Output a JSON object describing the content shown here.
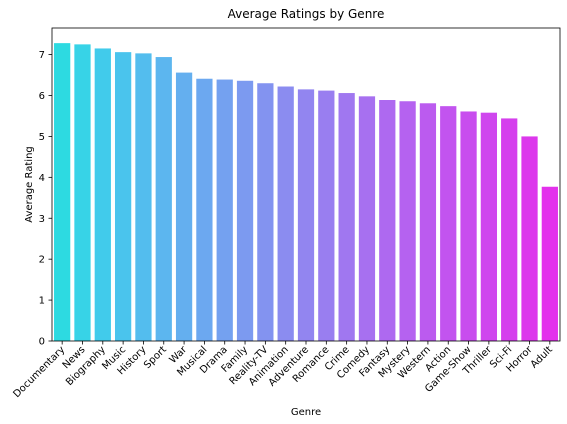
{
  "chart_data": {
    "type": "bar",
    "title": "Average Ratings by Genre",
    "xlabel": "Genre",
    "ylabel": "Average Rating",
    "categories": [
      "Documentary",
      "News",
      "Biography",
      "Music",
      "History",
      "Sport",
      "War",
      "Musical",
      "Drama",
      "Family",
      "Reality-TV",
      "Animation",
      "Adventure",
      "Romance",
      "Crime",
      "Comedy",
      "Fantasy",
      "Mystery",
      "Western",
      "Action",
      "Game-Show",
      "Thriller",
      "Sci-Fi",
      "Horror",
      "Adult"
    ],
    "values": [
      7.28,
      7.25,
      7.15,
      7.06,
      7.03,
      6.94,
      6.56,
      6.41,
      6.39,
      6.36,
      6.3,
      6.22,
      6.15,
      6.12,
      6.06,
      5.98,
      5.89,
      5.86,
      5.81,
      5.74,
      5.61,
      5.58,
      5.44,
      5.0,
      3.77
    ],
    "ylim": [
      0,
      7.65
    ],
    "yticks": [
      0,
      1,
      2,
      3,
      4,
      5,
      6,
      7
    ],
    "grid": false,
    "colors": [
      "#2ddae1",
      "#37d3e7",
      "#41cbeb",
      "#4ac4ed",
      "#53bdee",
      "#5cb6ef",
      "#64afef",
      "#6ca8f0",
      "#74a1f0",
      "#7c9af0",
      "#8393f0",
      "#8b8cf0",
      "#9285f0",
      "#997ef0",
      "#a077f0",
      "#a770f0",
      "#ae69f0",
      "#b562f0",
      "#bb5bef",
      "#c254ef",
      "#c84dee",
      "#cf46ee",
      "#d53fed",
      "#dc38ec",
      "#e331ec"
    ]
  }
}
